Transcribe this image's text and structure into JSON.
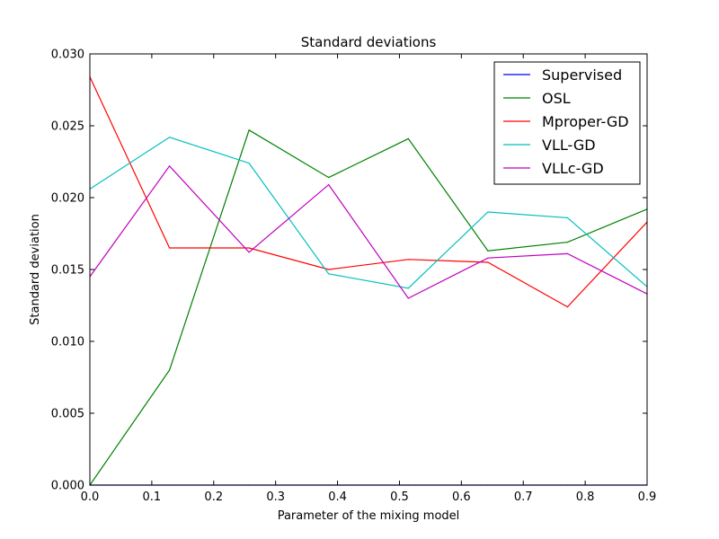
{
  "chart_data": {
    "type": "line",
    "title": "Standard deviations",
    "xlabel": "Parameter of the mixing model",
    "ylabel": "Standard deviation",
    "xlim": [
      0.0,
      0.9
    ],
    "ylim": [
      0.0,
      0.03
    ],
    "x_ticks": [
      0.0,
      0.1,
      0.2,
      0.3,
      0.4,
      0.5,
      0.6,
      0.7,
      0.8,
      0.9
    ],
    "x_tick_labels": [
      "0.0",
      "0.1",
      "0.2",
      "0.3",
      "0.4",
      "0.5",
      "0.6",
      "0.7",
      "0.8",
      "0.9"
    ],
    "y_ticks": [
      0.0,
      0.005,
      0.01,
      0.015,
      0.02,
      0.025,
      0.03
    ],
    "y_tick_labels": [
      "0.000",
      "0.005",
      "0.010",
      "0.015",
      "0.020",
      "0.025",
      "0.030"
    ],
    "grid": false,
    "legend_position": "top-right",
    "x": [
      0.0,
      0.1286,
      0.2571,
      0.3857,
      0.5143,
      0.6429,
      0.7714,
      0.9
    ],
    "series": [
      {
        "name": "Supervised",
        "color": "#0000ff",
        "values": [
          0,
          0,
          0,
          0,
          0,
          0,
          0,
          0
        ]
      },
      {
        "name": "OSL",
        "color": "#008000",
        "values": [
          0.0,
          0.008,
          0.0247,
          0.0214,
          0.0241,
          0.0163,
          0.0169,
          0.0192
        ]
      },
      {
        "name": "Mproper-GD",
        "color": "#ff0000",
        "values": [
          0.0284,
          0.0165,
          0.0165,
          0.015,
          0.0157,
          0.0155,
          0.0124,
          0.0183
        ]
      },
      {
        "name": "VLL-GD",
        "color": "#00bfbf",
        "values": [
          0.0206,
          0.0242,
          0.0224,
          0.0147,
          0.0137,
          0.019,
          0.0186,
          0.0138
        ]
      },
      {
        "name": "VLLc-GD",
        "color": "#bf00bf",
        "values": [
          0.0145,
          0.0222,
          0.0162,
          0.0209,
          0.013,
          0.0158,
          0.0161,
          0.0133
        ]
      }
    ]
  }
}
